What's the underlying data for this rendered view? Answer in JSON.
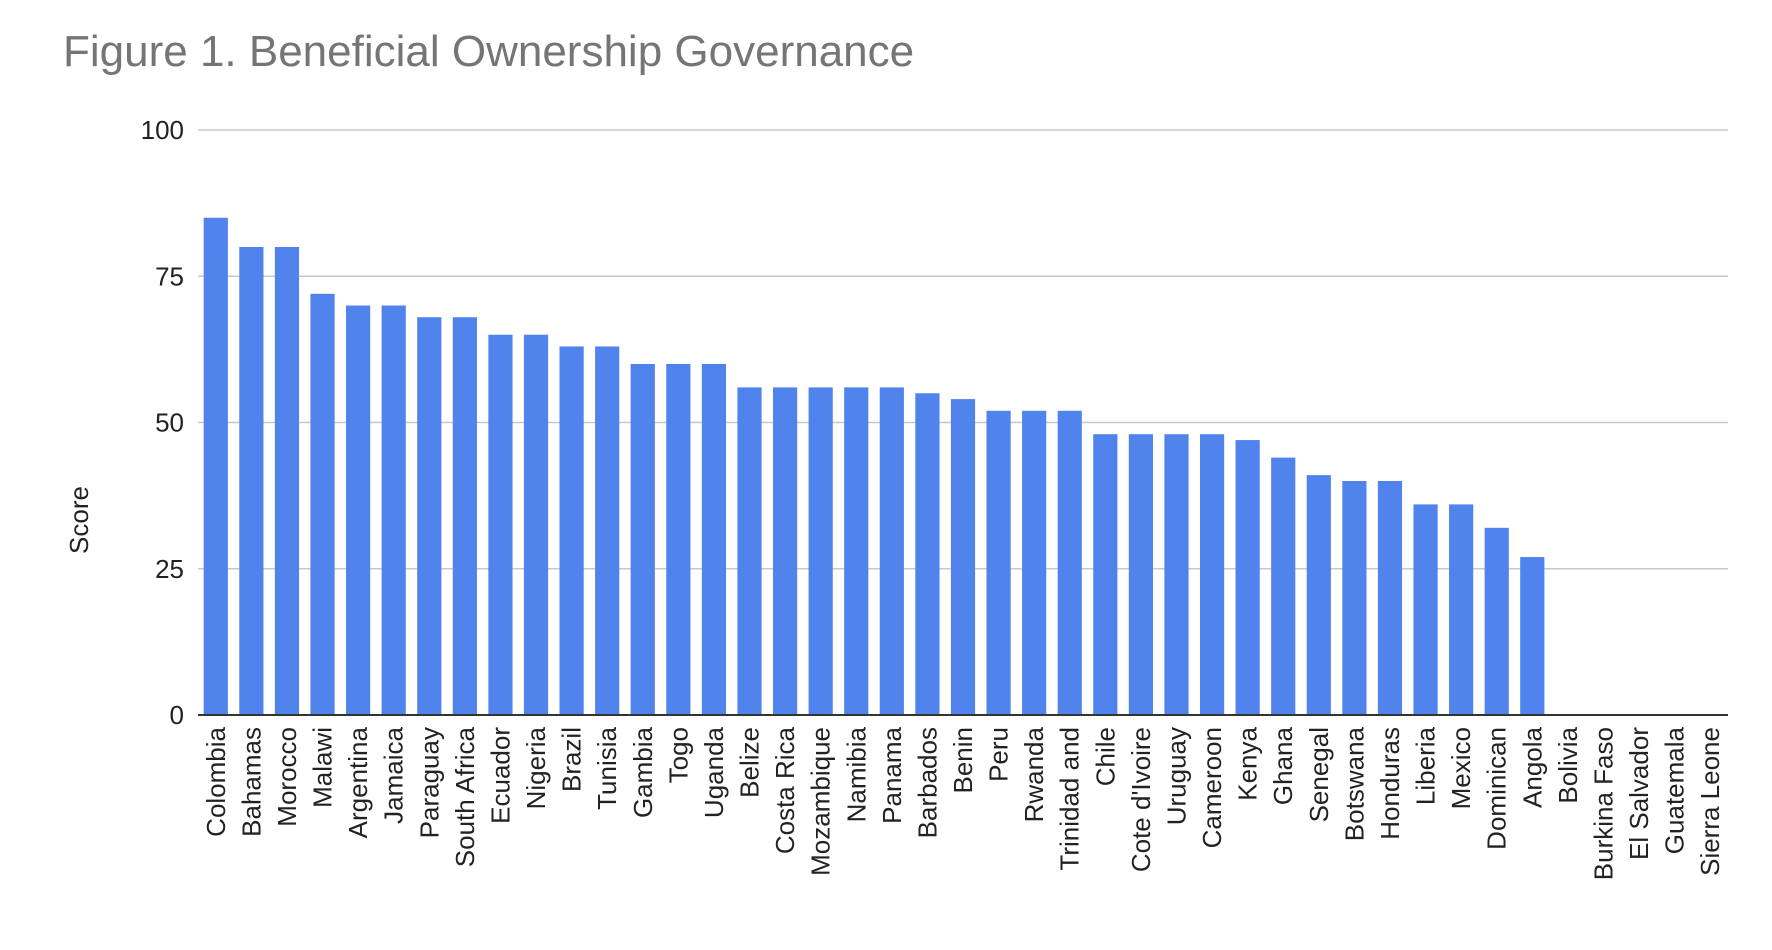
{
  "chart_data": {
    "type": "bar",
    "title": "Figure 1. Beneficial Ownership Governance",
    "xlabel": "",
    "ylabel": "Score",
    "ylim": [
      0,
      100
    ],
    "yticks": [
      "0",
      "25",
      "50",
      "75",
      "100"
    ],
    "grid": true,
    "legend": "none",
    "bar_color": "#5183ed",
    "categories": [
      "Colombia",
      "Bahamas",
      "Morocco",
      "Malawi",
      "Argentina",
      "Jamaica",
      "Paraguay",
      "South Africa",
      "Ecuador",
      "Nigeria",
      "Brazil",
      "Tunisia",
      "Gambia",
      "Togo",
      "Uganda",
      "Belize",
      "Costa Rica",
      "Mozambique",
      "Namibia",
      "Panama",
      "Barbados",
      "Benin",
      "Peru",
      "Rwanda",
      "Trinidad and",
      "Chile",
      "Cote d'Ivoire",
      "Uruguay",
      "Cameroon",
      "Kenya",
      "Ghana",
      "Senegal",
      "Botswana",
      "Honduras",
      "Liberia",
      "Mexico",
      "Dominican",
      "Angola",
      "Bolivia",
      "Burkina Faso",
      "El Salvador",
      "Guatemala",
      "Sierra Leone"
    ],
    "values": [
      85,
      80,
      80,
      72,
      70,
      70,
      68,
      68,
      65,
      65,
      63,
      63,
      60,
      60,
      60,
      56,
      56,
      56,
      56,
      56,
      55,
      54,
      52,
      52,
      52,
      48,
      48,
      48,
      48,
      47,
      44,
      41,
      40,
      40,
      36,
      36,
      32,
      27,
      0,
      0,
      0,
      0,
      0
    ]
  }
}
